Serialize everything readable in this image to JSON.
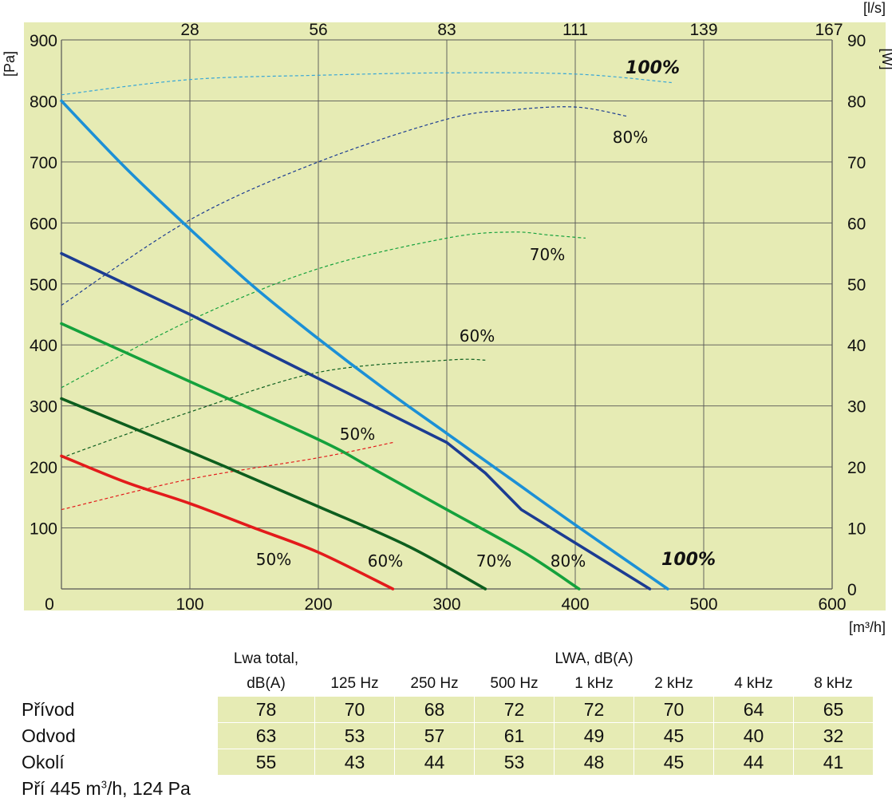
{
  "chart_data": {
    "type": "line",
    "x_axis": {
      "ticks": [
        0,
        100,
        200,
        300,
        400,
        500,
        600
      ],
      "unit": "[m³/h]",
      "range": [
        0,
        600
      ]
    },
    "x_axis_top": {
      "ticks": [
        "28",
        "56",
        "83",
        "111",
        "139",
        "167"
      ],
      "unit": "[l/s]"
    },
    "y_axis_left": {
      "ticks": [
        100,
        200,
        300,
        400,
        500,
        600,
        700,
        800,
        900
      ],
      "zero_label": "0",
      "unit": "[Pa]",
      "range": [
        0,
        900
      ]
    },
    "y_axis_right": {
      "ticks": [
        0,
        10,
        20,
        30,
        40,
        50,
        60,
        70,
        80,
        90
      ],
      "unit": "[W]",
      "range": [
        0,
        90
      ]
    },
    "grid": true,
    "background": "#e6ebb4",
    "pressure_curves": [
      {
        "label": "50%",
        "color": "#e31b1b",
        "points": [
          [
            0,
            218
          ],
          [
            50,
            175
          ],
          [
            100,
            140
          ],
          [
            150,
            100
          ],
          [
            200,
            60
          ],
          [
            258,
            0
          ]
        ]
      },
      {
        "label": "60%",
        "color": "#0d5e1e",
        "points": [
          [
            0,
            312
          ],
          [
            100,
            225
          ],
          [
            200,
            135
          ],
          [
            270,
            70
          ],
          [
            330,
            0
          ]
        ]
      },
      {
        "label": "70%",
        "color": "#15a13c",
        "points": [
          [
            0,
            435
          ],
          [
            100,
            340
          ],
          [
            200,
            245
          ],
          [
            240,
            200
          ],
          [
            300,
            130
          ],
          [
            360,
            60
          ],
          [
            403,
            0
          ]
        ]
      },
      {
        "label": "80%",
        "color": "#1c3c92",
        "points": [
          [
            0,
            550
          ],
          [
            100,
            450
          ],
          [
            200,
            345
          ],
          [
            300,
            240
          ],
          [
            330,
            190
          ],
          [
            358,
            130
          ],
          [
            458,
            0
          ]
        ]
      },
      {
        "label": "100%",
        "color": "#1c90d6",
        "points": [
          [
            0,
            800
          ],
          [
            50,
            690
          ],
          [
            100,
            590
          ],
          [
            150,
            495
          ],
          [
            200,
            410
          ],
          [
            250,
            330
          ],
          [
            300,
            255
          ],
          [
            350,
            180
          ],
          [
            400,
            105
          ],
          [
            472,
            0
          ]
        ]
      }
    ],
    "power_curves": [
      {
        "label": "50%",
        "color": "#e31b1b",
        "points": [
          [
            0,
            13
          ],
          [
            100,
            18
          ],
          [
            200,
            21.5
          ],
          [
            258,
            24
          ]
        ]
      },
      {
        "label": "60%",
        "color": "#0d5e1e",
        "points": [
          [
            0,
            21.5
          ],
          [
            100,
            29
          ],
          [
            200,
            35.5
          ],
          [
            300,
            37.5
          ],
          [
            330,
            37.5
          ]
        ]
      },
      {
        "label": "70%",
        "color": "#15a13c",
        "points": [
          [
            0,
            33
          ],
          [
            100,
            44
          ],
          [
            200,
            52.5
          ],
          [
            300,
            57.5
          ],
          [
            350,
            58.5
          ],
          [
            380,
            58
          ],
          [
            408,
            57.5
          ]
        ]
      },
      {
        "label": "80%",
        "color": "#1c3c92",
        "points": [
          [
            0,
            46.5
          ],
          [
            100,
            60.5
          ],
          [
            200,
            70
          ],
          [
            300,
            77
          ],
          [
            350,
            78.5
          ],
          [
            400,
            79
          ],
          [
            440,
            77.5
          ]
        ]
      },
      {
        "label": "100%",
        "color": "#38a6d6",
        "points": [
          [
            0,
            81
          ],
          [
            100,
            83.5
          ],
          [
            200,
            84.2
          ],
          [
            300,
            84.6
          ],
          [
            400,
            84.4
          ],
          [
            475,
            83
          ]
        ]
      }
    ],
    "power_labels": [
      "100%",
      "80%",
      "70%",
      "60%",
      "50%"
    ],
    "pressure_labels": [
      "50%",
      "60%",
      "70%",
      "80%",
      "100%"
    ]
  },
  "table": {
    "col_header_total": [
      "Lwa total,",
      "dB(A)"
    ],
    "col_header_group": "LWA, dB(A)",
    "frequencies": [
      "125 Hz",
      "250 Hz",
      "500 Hz",
      "1 kHz",
      "2 kHz",
      "4 kHz",
      "8 kHz"
    ],
    "rows": [
      {
        "label": "Přívod",
        "total": "78",
        "values": [
          "70",
          "68",
          "72",
          "72",
          "70",
          "64",
          "65"
        ]
      },
      {
        "label": "Odvod",
        "total": "63",
        "values": [
          "53",
          "57",
          "61",
          "49",
          "45",
          "40",
          "32"
        ]
      },
      {
        "label": "Okolí",
        "total": "55",
        "values": [
          "43",
          "44",
          "53",
          "48",
          "45",
          "44",
          "41"
        ]
      }
    ],
    "note_prefix": "Pří 445 m",
    "note_sup": "3",
    "note_suffix": "/h, 124 Pa"
  }
}
